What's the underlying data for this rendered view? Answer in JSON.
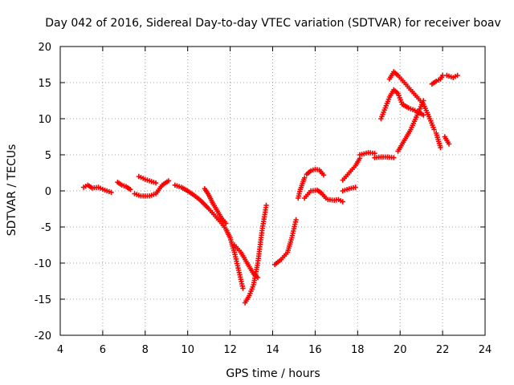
{
  "chart_data": {
    "type": "scatter",
    "title": "Day 042 of 2016, Sidereal Day-to-day VTEC variation (SDTVAR) for receiver boav",
    "xlabel": "GPS time / hours",
    "ylabel": "SDTVAR / TECUs",
    "xlim": [
      4,
      24
    ],
    "ylim": [
      -20,
      20
    ],
    "xticks": [
      "4",
      "6",
      "8",
      "10",
      "12",
      "14",
      "16",
      "18",
      "20",
      "22",
      "24"
    ],
    "yticks": [
      "-20",
      "-15",
      "-10",
      "-5",
      "0",
      "5",
      "10",
      "15",
      "20"
    ],
    "grid": true,
    "marker": "+",
    "series_color": "#ff0000",
    "segments": [
      {
        "x": [
          5.1,
          5.3,
          5.5,
          5.8,
          6.1,
          6.4
        ],
        "y": [
          0.5,
          0.8,
          0.4,
          0.5,
          0.1,
          -0.2
        ]
      },
      {
        "x": [
          6.7,
          6.9,
          7.1,
          7.3
        ],
        "y": [
          1.2,
          0.8,
          0.6,
          0.2
        ]
      },
      {
        "x": [
          7.5,
          7.8,
          8.2,
          8.5,
          8.8,
          9.1
        ],
        "y": [
          -0.4,
          -0.7,
          -0.7,
          -0.4,
          0.8,
          1.4
        ]
      },
      {
        "x": [
          7.7,
          8.0,
          8.3,
          8.5
        ],
        "y": [
          2.0,
          1.6,
          1.3,
          1.1
        ]
      },
      {
        "x": [
          9.4,
          9.7,
          10.0,
          10.3,
          10.6,
          11.0,
          11.3,
          11.6,
          11.8,
          12.0,
          12.2,
          12.4,
          12.6
        ],
        "y": [
          0.8,
          0.5,
          0.0,
          -0.6,
          -1.3,
          -2.5,
          -3.5,
          -4.5,
          -5.3,
          -6.5,
          -8.5,
          -11.0,
          -13.5
        ]
      },
      {
        "x": [
          10.8,
          11.0,
          11.2,
          11.4,
          11.6,
          11.8
        ],
        "y": [
          0.3,
          -0.6,
          -1.8,
          -2.8,
          -3.8,
          -4.5
        ]
      },
      {
        "x": [
          12.2,
          12.5,
          12.8,
          13.1,
          13.3
        ],
        "y": [
          -7.5,
          -8.5,
          -10.0,
          -11.5,
          -12.0
        ]
      },
      {
        "x": [
          12.7,
          12.9,
          13.1,
          13.3,
          13.5,
          13.7
        ],
        "y": [
          -15.5,
          -14.5,
          -13.0,
          -10.0,
          -5.5,
          -2.0
        ]
      },
      {
        "x": [
          14.1,
          14.4,
          14.7,
          14.9,
          15.1
        ],
        "y": [
          -10.2,
          -9.5,
          -8.5,
          -6.5,
          -4.0
        ]
      },
      {
        "x": [
          15.2,
          15.3,
          15.4,
          15.5
        ],
        "y": [
          -1.0,
          0.2,
          1.0,
          1.8
        ]
      },
      {
        "x": [
          15.5,
          15.8,
          16.1,
          16.3,
          16.5
        ],
        "y": [
          -1.0,
          0.0,
          0.1,
          -0.3,
          -1.0
        ]
      },
      {
        "x": [
          15.6,
          15.8,
          16.0,
          16.2,
          16.4
        ],
        "y": [
          2.3,
          2.8,
          3.0,
          2.9,
          2.2
        ]
      },
      {
        "x": [
          16.6,
          16.9,
          17.1,
          17.3
        ],
        "y": [
          -1.2,
          -1.3,
          -1.2,
          -1.5
        ]
      },
      {
        "x": [
          17.3,
          17.6,
          17.9,
          18.1
        ],
        "y": [
          1.5,
          2.5,
          3.5,
          4.5
        ]
      },
      {
        "x": [
          17.3,
          17.6,
          17.9
        ],
        "y": [
          0.0,
          0.3,
          0.5
        ]
      },
      {
        "x": [
          18.1,
          18.5,
          18.8
        ],
        "y": [
          5.0,
          5.3,
          5.2
        ]
      },
      {
        "x": [
          18.8,
          19.1,
          19.4,
          19.7
        ],
        "y": [
          4.6,
          4.7,
          4.7,
          4.6
        ]
      },
      {
        "x": [
          19.1,
          19.3,
          19.5,
          19.7,
          19.9,
          20.1,
          20.4,
          20.8,
          21.1
        ],
        "y": [
          10.0,
          11.5,
          13.0,
          14.0,
          13.5,
          12.0,
          11.5,
          11.0,
          10.5
        ]
      },
      {
        "x": [
          19.5,
          19.7,
          19.9,
          20.2,
          20.5,
          20.8,
          21.1,
          21.4,
          21.6
        ],
        "y": [
          15.5,
          16.5,
          16.0,
          15.0,
          14.0,
          13.0,
          12.0,
          10.0,
          8.5
        ]
      },
      {
        "x": [
          19.9,
          20.2,
          20.5,
          20.8,
          21.1
        ],
        "y": [
          5.5,
          7.0,
          8.5,
          10.5,
          12.5
        ]
      },
      {
        "x": [
          21.5,
          21.7,
          21.9,
          22.0
        ],
        "y": [
          14.8,
          15.2,
          15.5,
          16.0
        ]
      },
      {
        "x": [
          21.7,
          21.9
        ],
        "y": [
          8.0,
          6.0
        ]
      },
      {
        "x": [
          22.1,
          22.3
        ],
        "y": [
          7.5,
          6.5
        ]
      },
      {
        "x": [
          22.2,
          22.5,
          22.7
        ],
        "y": [
          16.0,
          15.7,
          16.0
        ]
      }
    ]
  }
}
